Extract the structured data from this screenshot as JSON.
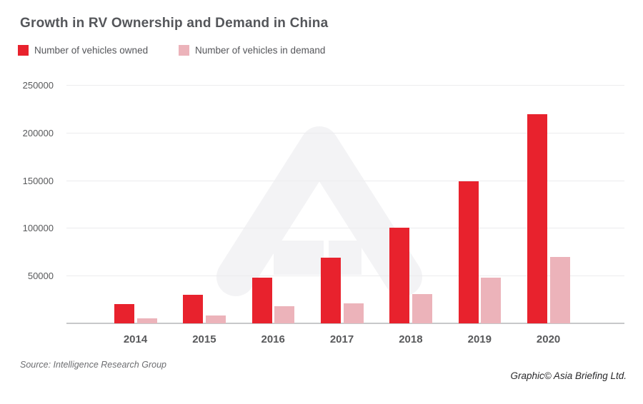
{
  "page": {
    "title": "Growth in RV Ownership and Demand in China",
    "source": "Source: Intelligence Research Group",
    "credit": "Graphic© Asia Briefing Ltd."
  },
  "colors": {
    "owned": "#e8222d",
    "demand": "#ecb3ba",
    "title_text": "#54565a",
    "axis_text": "#58595b",
    "gridline": "#ececee",
    "baseline": "#c7c8ca",
    "watermark": "#f3f3f5"
  },
  "chart_data": {
    "type": "bar",
    "title": "Growth in RV Ownership and Demand in China",
    "categories": [
      "2014",
      "2015",
      "2016",
      "2017",
      "2018",
      "2019",
      "2020"
    ],
    "series": [
      {
        "name": "Number of vehicles owned",
        "color": "#e8222d",
        "values": [
          20000,
          30000,
          48000,
          69000,
          100000,
          149000,
          219000
        ]
      },
      {
        "name": "Number of vehicles in demand",
        "color": "#ecb3ba",
        "values": [
          5000,
          8000,
          18000,
          21000,
          31000,
          48000,
          70000
        ]
      }
    ],
    "xlabel": "",
    "ylabel": "",
    "ylim": [
      0,
      250000
    ],
    "yticks": [
      50000,
      100000,
      150000,
      200000,
      250000
    ],
    "ytick_labels": [
      "50000",
      "100000",
      "150000",
      "200000",
      "250000"
    ],
    "grid": "horizontal",
    "legend_position": "top-left"
  }
}
